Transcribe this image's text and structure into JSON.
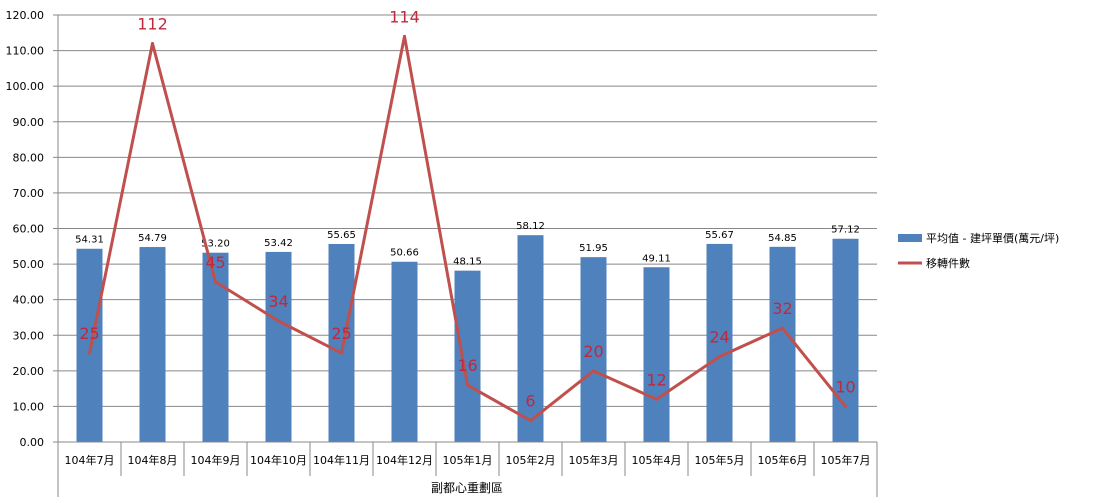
{
  "chart_data": {
    "type": "bar",
    "categories": [
      "104年7月",
      "104年8月",
      "104年9月",
      "104年10月",
      "104年11月",
      "104年12月",
      "105年1月",
      "105年2月",
      "105年3月",
      "105年4月",
      "105年5月",
      "105年6月",
      "105年7月"
    ],
    "series": [
      {
        "name": "平均值 - 建坪單價(萬元/坪)",
        "type": "bar",
        "color": "#4f81bd",
        "values": [
          54.31,
          54.79,
          53.2,
          53.42,
          55.65,
          50.66,
          48.15,
          58.12,
          51.95,
          49.11,
          55.67,
          54.85,
          57.12
        ],
        "labels": [
          "54.31",
          "54.79",
          "53.20",
          "53.42",
          "55.65",
          "50.66",
          "48.15",
          "58.12",
          "51.95",
          "49.11",
          "55.67",
          "54.85",
          "57.12"
        ]
      },
      {
        "name": "移轉件數",
        "type": "line",
        "color": "#c0504d",
        "values": [
          25,
          112,
          45,
          34,
          25,
          114,
          16,
          6,
          20,
          12,
          24,
          32,
          10
        ],
        "labels": [
          "25",
          "112",
          "45",
          "34",
          "25",
          "114",
          "16",
          "6",
          "20",
          "12",
          "24",
          "32",
          "10"
        ]
      }
    ],
    "yticks": [
      "0.00",
      "10.00",
      "20.00",
      "30.00",
      "40.00",
      "50.00",
      "60.00",
      "70.00",
      "80.00",
      "90.00",
      "100.00",
      "110.00",
      "120.00"
    ],
    "ylim": [
      0,
      120
    ],
    "xlabel": "副都心重劃區",
    "grid": true,
    "legend": "right"
  }
}
